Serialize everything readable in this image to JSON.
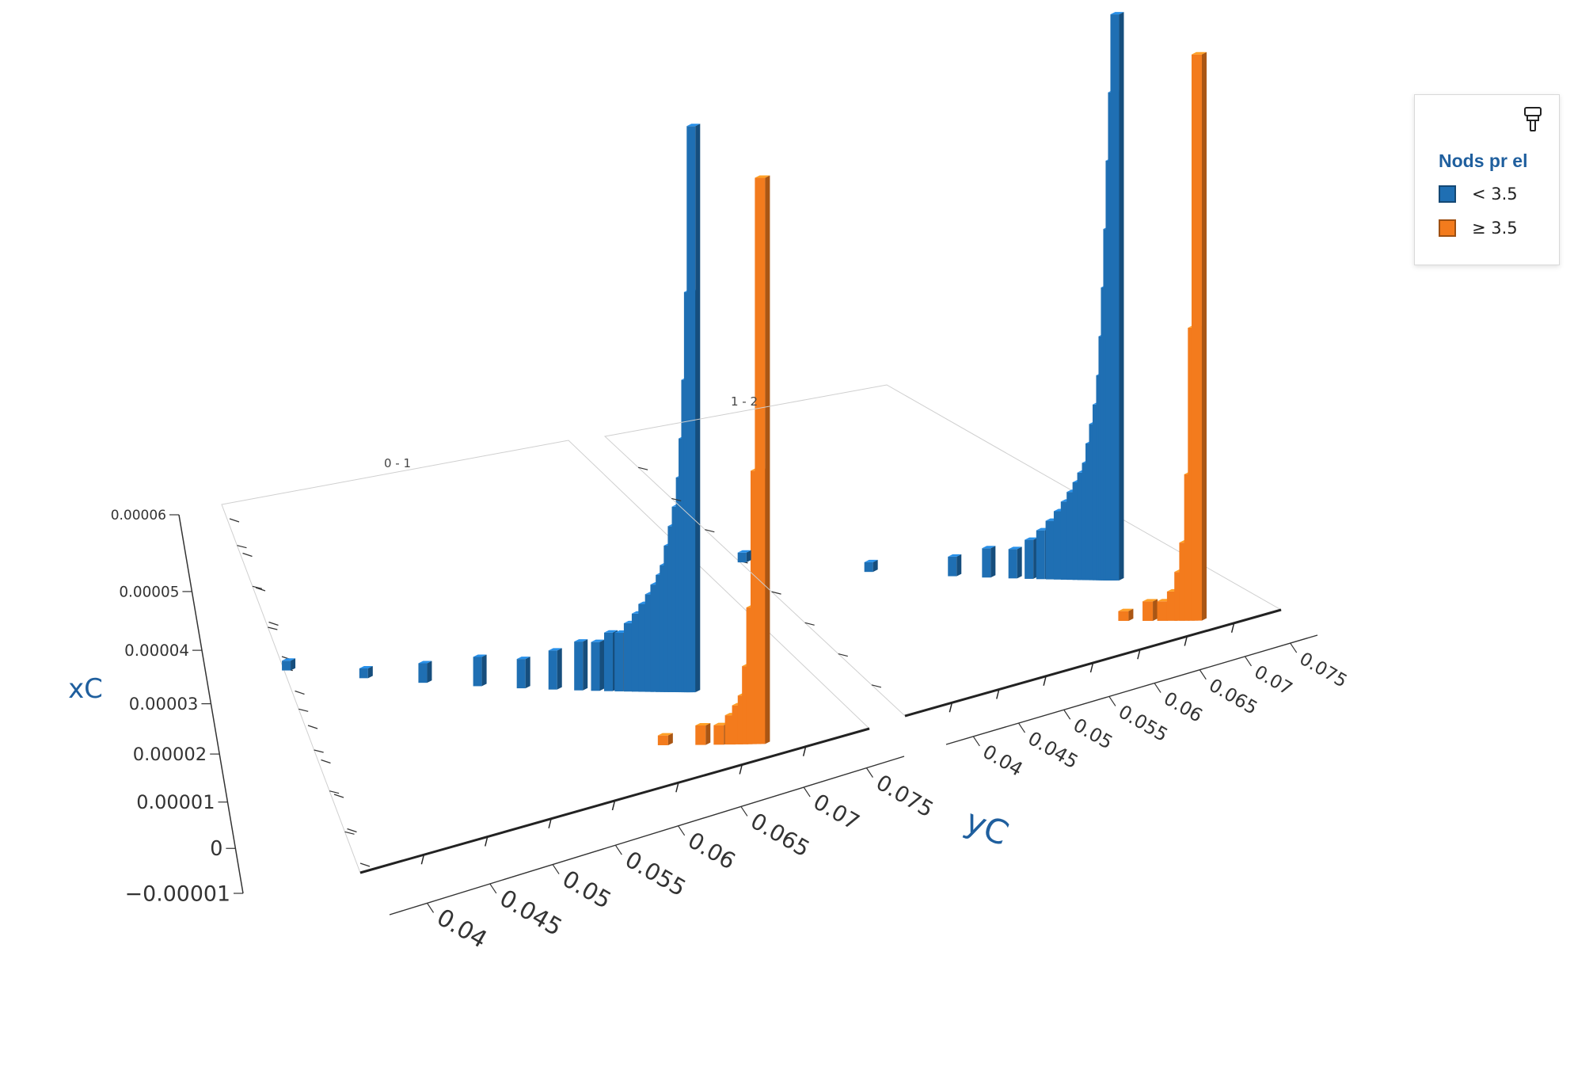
{
  "colors": {
    "series_low": "#1f6fb3",
    "series_high": "#f37b1d",
    "axis_title": "#1f5f9e"
  },
  "legend": {
    "title": "Nods pr el",
    "icon": "paintbrush-icon",
    "items": [
      {
        "symbol": "<",
        "label": "< 3.5",
        "color": "#1f6fb3"
      },
      {
        "symbol": "≥",
        "label": "≥ 3.5",
        "color": "#f37b1d"
      }
    ]
  },
  "chart_data": {
    "type": "bar",
    "subtype": "3d-bar-small-multiples",
    "xlabel": "yC",
    "ylabel": "xC",
    "ylim": [
      -1e-05,
      6e-05
    ],
    "y_ticks": [
      "0.00006",
      "0.00005",
      "0.00004",
      "0.00003",
      "0.00002",
      "0.00001",
      "0",
      "−0.00001"
    ],
    "x_ticks": [
      "0.04",
      "0.045",
      "0.05",
      "0.055",
      "0.06",
      "0.065",
      "0.07",
      "0.075"
    ],
    "xlim": [
      0.035,
      0.078
    ],
    "panels": [
      {
        "label": "0 - 1",
        "series": [
          {
            "name": "< 3.5",
            "x": [
              0.0352,
              0.042,
              0.047,
              0.0515,
              0.055,
              0.0575,
              0.0595,
              0.0608,
              0.0618,
              0.0626,
              0.0633,
              0.0639,
              0.0644,
              0.0649,
              0.0653,
              0.0657,
              0.066,
              0.0663,
              0.0666,
              0.0669,
              0.0672,
              0.0674,
              0.0676,
              0.0678,
              0.068
            ],
            "values": [
              1e-06,
              1e-06,
              2e-06,
              3e-06,
              3e-06,
              4e-06,
              5e-06,
              5e-06,
              6e-06,
              6e-06,
              7e-06,
              8e-06,
              9e-06,
              1e-05,
              1.1e-05,
              1.2e-05,
              1.3e-05,
              1.5e-05,
              1.7e-05,
              1.9e-05,
              2.2e-05,
              2.6e-05,
              3.2e-05,
              4.1e-05,
              5.8e-05
            ]
          },
          {
            "name": "≥ 3.5",
            "x": [
              0.0628,
              0.0655,
              0.0668,
              0.0676,
              0.0681,
              0.0685,
              0.0688,
              0.0691,
              0.0694,
              0.0697
            ],
            "values": [
              1e-06,
              2e-06,
              2e-06,
              3e-06,
              4e-06,
              5e-06,
              8e-06,
              1.4e-05,
              2.8e-05,
              5.8e-05
            ]
          }
        ]
      },
      {
        "label": "1 - 2",
        "series": [
          {
            "name": "< 3.5",
            "x": [
              0.0352,
              0.047,
              0.0545,
              0.0575,
              0.0598,
              0.0612,
              0.0622,
              0.063,
              0.0637,
              0.0643,
              0.0648,
              0.0653,
              0.0657,
              0.0661,
              0.0664,
              0.0667,
              0.067,
              0.0673,
              0.0675,
              0.0677,
              0.0679,
              0.0681,
              0.0683,
              0.0685
            ],
            "values": [
              1e-06,
              1e-06,
              2e-06,
              3e-06,
              3e-06,
              4e-06,
              5e-06,
              6e-06,
              7e-06,
              8e-06,
              9e-06,
              1e-05,
              1.1e-05,
              1.2e-05,
              1.4e-05,
              1.6e-05,
              1.8e-05,
              2.1e-05,
              2.5e-05,
              3e-05,
              3.6e-05,
              4.3e-05,
              5e-05,
              5.8e-05
            ]
          },
          {
            "name": "≥ 3.5",
            "x": [
              0.064,
              0.066,
              0.0672,
              0.068,
              0.0686,
              0.069,
              0.0694,
              0.0697,
              0.07
            ],
            "values": [
              1e-06,
              2e-06,
              2e-06,
              3e-06,
              5e-06,
              8e-06,
              1.5e-05,
              3e-05,
              5.8e-05
            ]
          }
        ]
      }
    ]
  }
}
